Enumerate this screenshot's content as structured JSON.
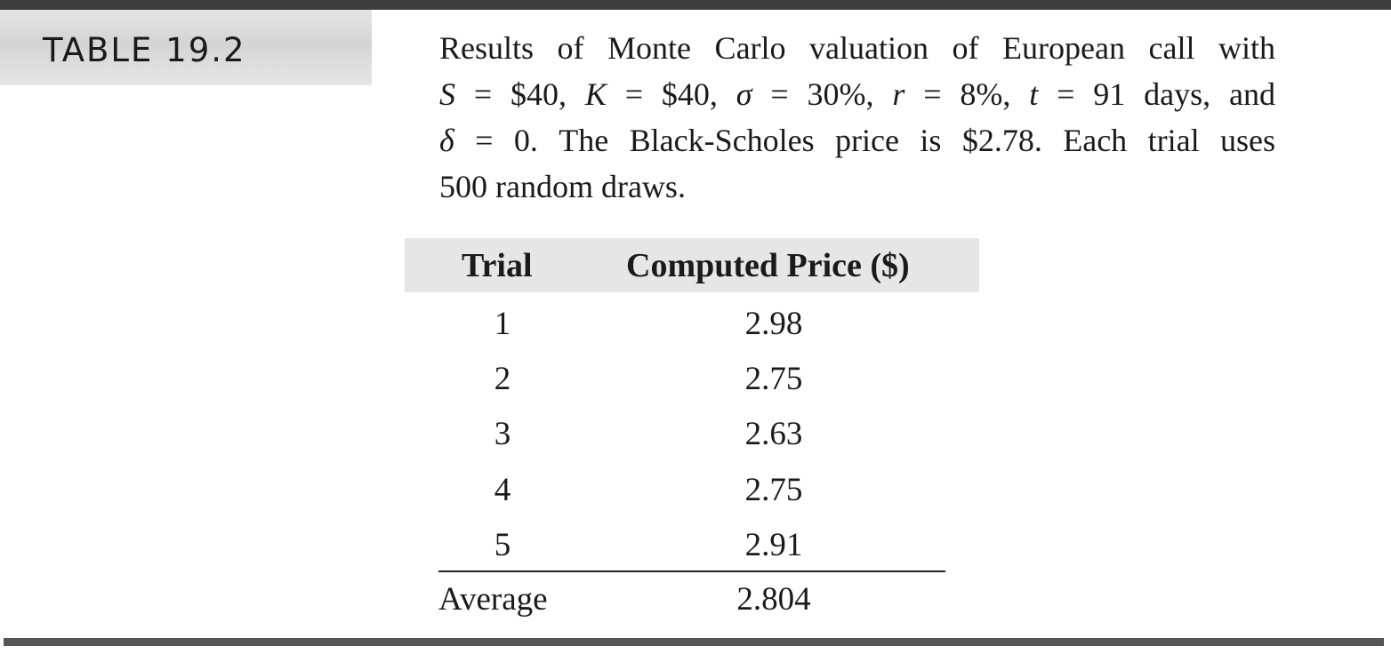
{
  "table_label": "TABLE 19.2",
  "caption": {
    "line1": "Results of Monte Carlo valuation of European call with",
    "line2": {
      "S_var": "S",
      "S_val": " = $40, ",
      "K_var": "K",
      "K_val": " = $40, ",
      "sigma_var": "σ",
      "sigma_val": " = 30%, ",
      "r_var": "r",
      "r_val": " = 8%, ",
      "t_var": "t",
      "t_val": " = 91 days, and"
    },
    "line3": {
      "delta_var": "δ",
      "delta_rest": " = 0. The Black-Scholes price is $2.78. Each trial uses"
    },
    "line4": "500 random draws."
  },
  "table": {
    "headers": {
      "trial": "Trial",
      "price": "Computed Price ($)"
    },
    "rows": [
      {
        "trial": "1",
        "price": "2.98"
      },
      {
        "trial": "2",
        "price": "2.75"
      },
      {
        "trial": "3",
        "price": "2.63"
      },
      {
        "trial": "4",
        "price": "2.75"
      },
      {
        "trial": "5",
        "price": "2.91"
      }
    ],
    "average": {
      "label": "Average",
      "value": "2.804"
    }
  }
}
